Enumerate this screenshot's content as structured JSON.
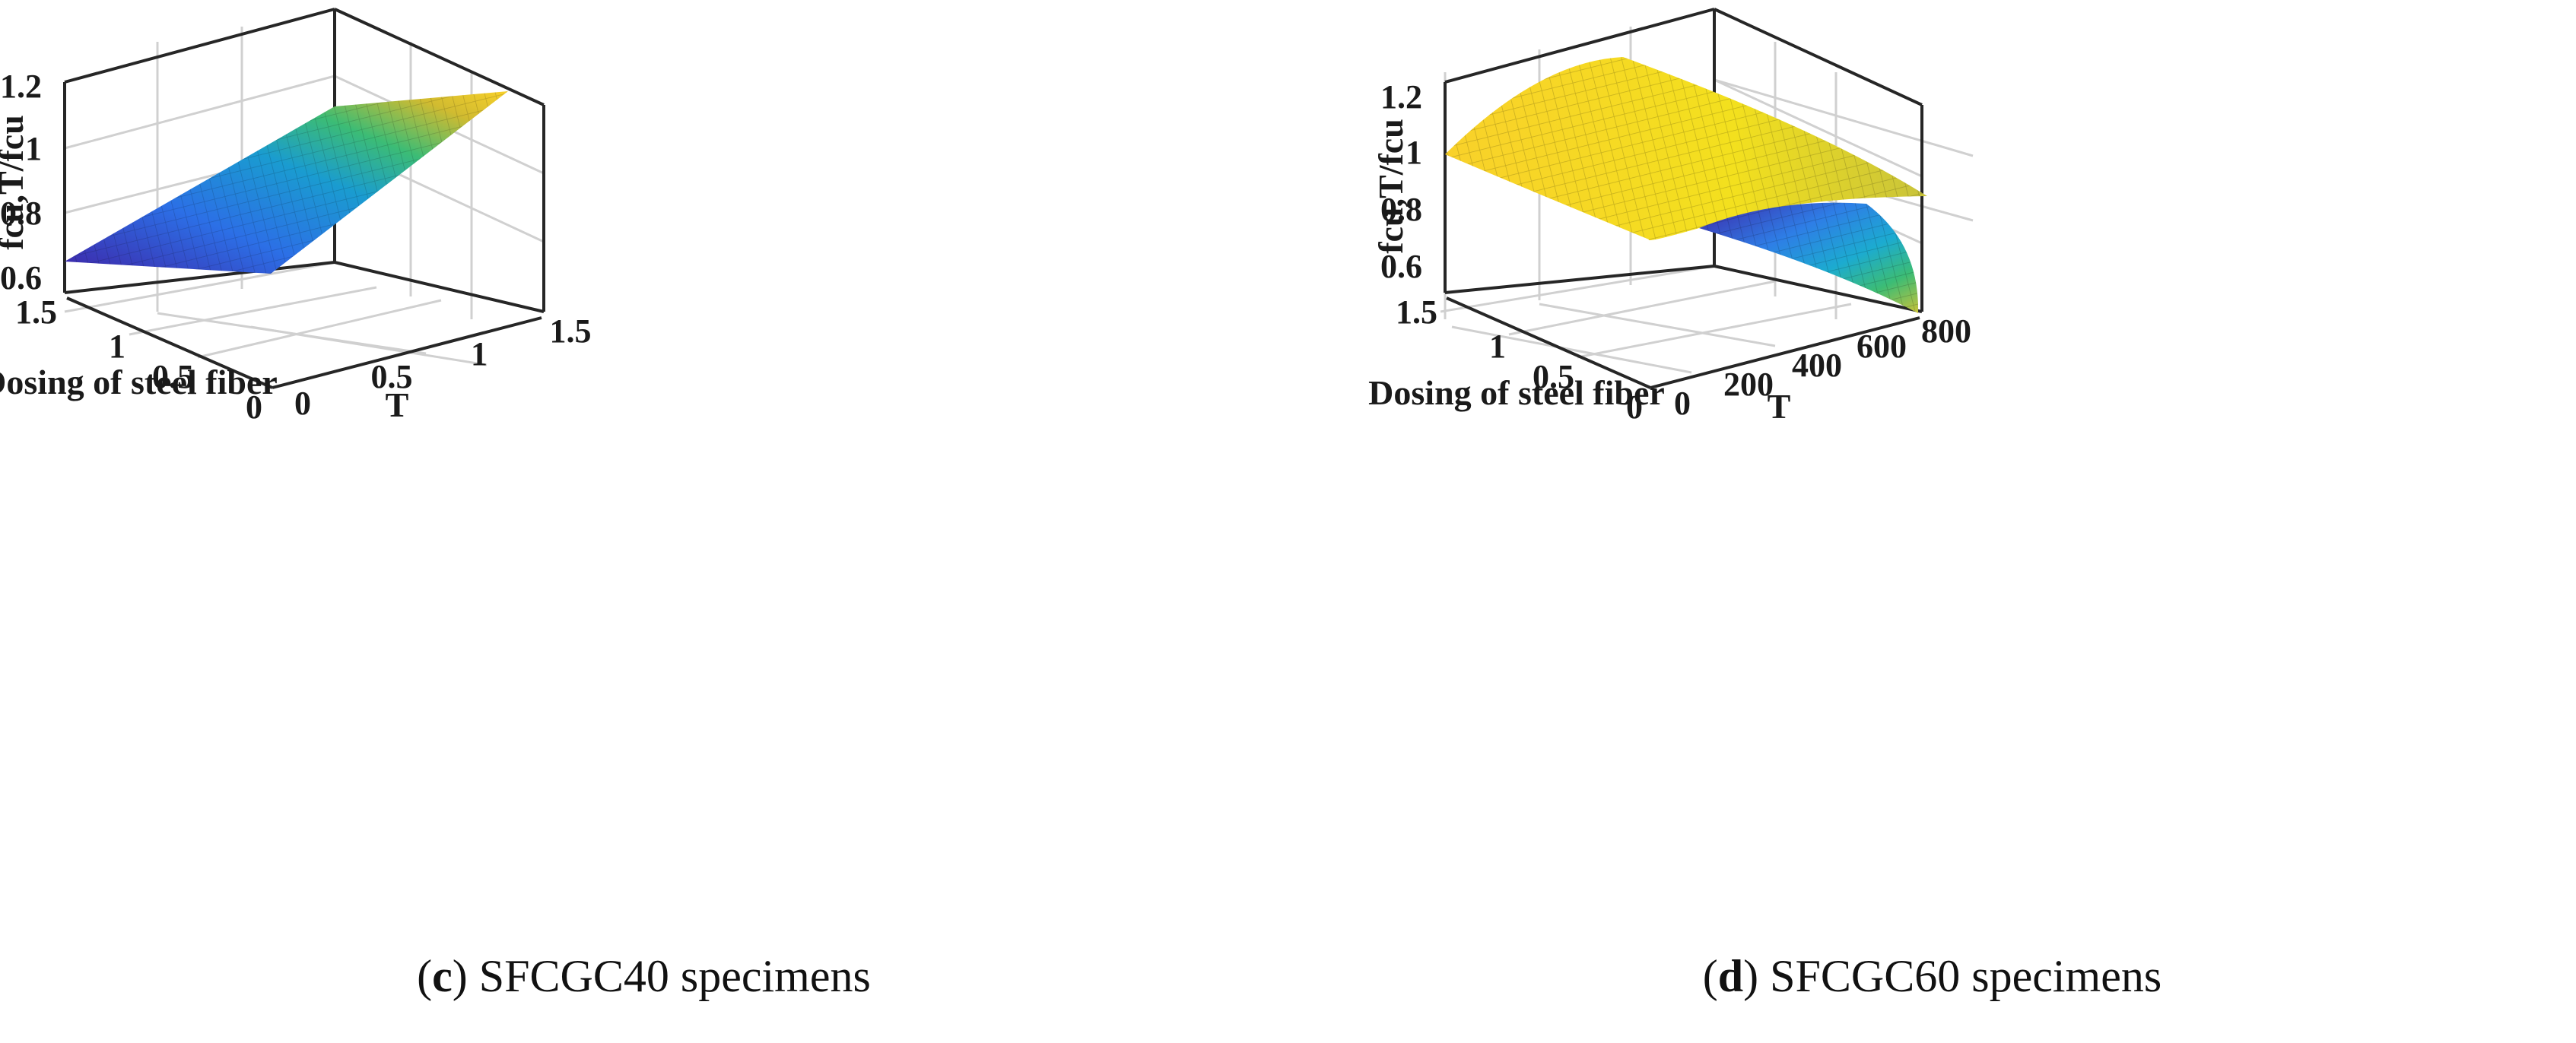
{
  "charts": [
    {
      "caption_letter": "c",
      "caption_text": "SFCGC40 specimens",
      "chart_data": {
        "type": "surface",
        "zlabel": "fcu,T/fcu",
        "xlabel": "T",
        "ylabel": "Dosing of steel fiber",
        "xticks": [
          "0",
          "0.5",
          "1",
          "1.5"
        ],
        "yticks": [
          "0",
          "0.5",
          "1",
          "1.5"
        ],
        "zticks": [
          "0.6",
          "0.8",
          "1",
          "1.2"
        ],
        "xlim": [
          0,
          1.5
        ],
        "ylim": [
          0,
          1.5
        ],
        "zlim": [
          0.55,
          1.2
        ],
        "surface_corners": {
          "T0_D0": 0.64,
          "T1.5_D0": 0.94,
          "T0_D1.5": 0.9,
          "T1.5_D1.5": 1.2
        },
        "colormap": "parula"
      }
    },
    {
      "caption_letter": "d",
      "caption_text": "SFCGC60 specimens",
      "chart_data": {
        "type": "surface",
        "zlabel": "fcu,T/fcu",
        "xlabel": "T",
        "ylabel": "Dosing of steel fiber",
        "xticks": [
          "0",
          "200",
          "400",
          "600",
          "800"
        ],
        "yticks": [
          "0",
          "0.5",
          "1",
          "1.5"
        ],
        "zticks": [
          "0.6",
          "0.8",
          "1",
          "1.2"
        ],
        "xlim": [
          0,
          800
        ],
        "ylim": [
          0,
          1.5
        ],
        "zlim": [
          0.5,
          1.25
        ],
        "surface_profile": {
          "T_at_0": 1.0,
          "T_at_200": 1.12,
          "T_at_400": 1.13,
          "T_at_600": 1.0,
          "T_at_800": 0.53
        },
        "colormap": "parula"
      }
    }
  ]
}
